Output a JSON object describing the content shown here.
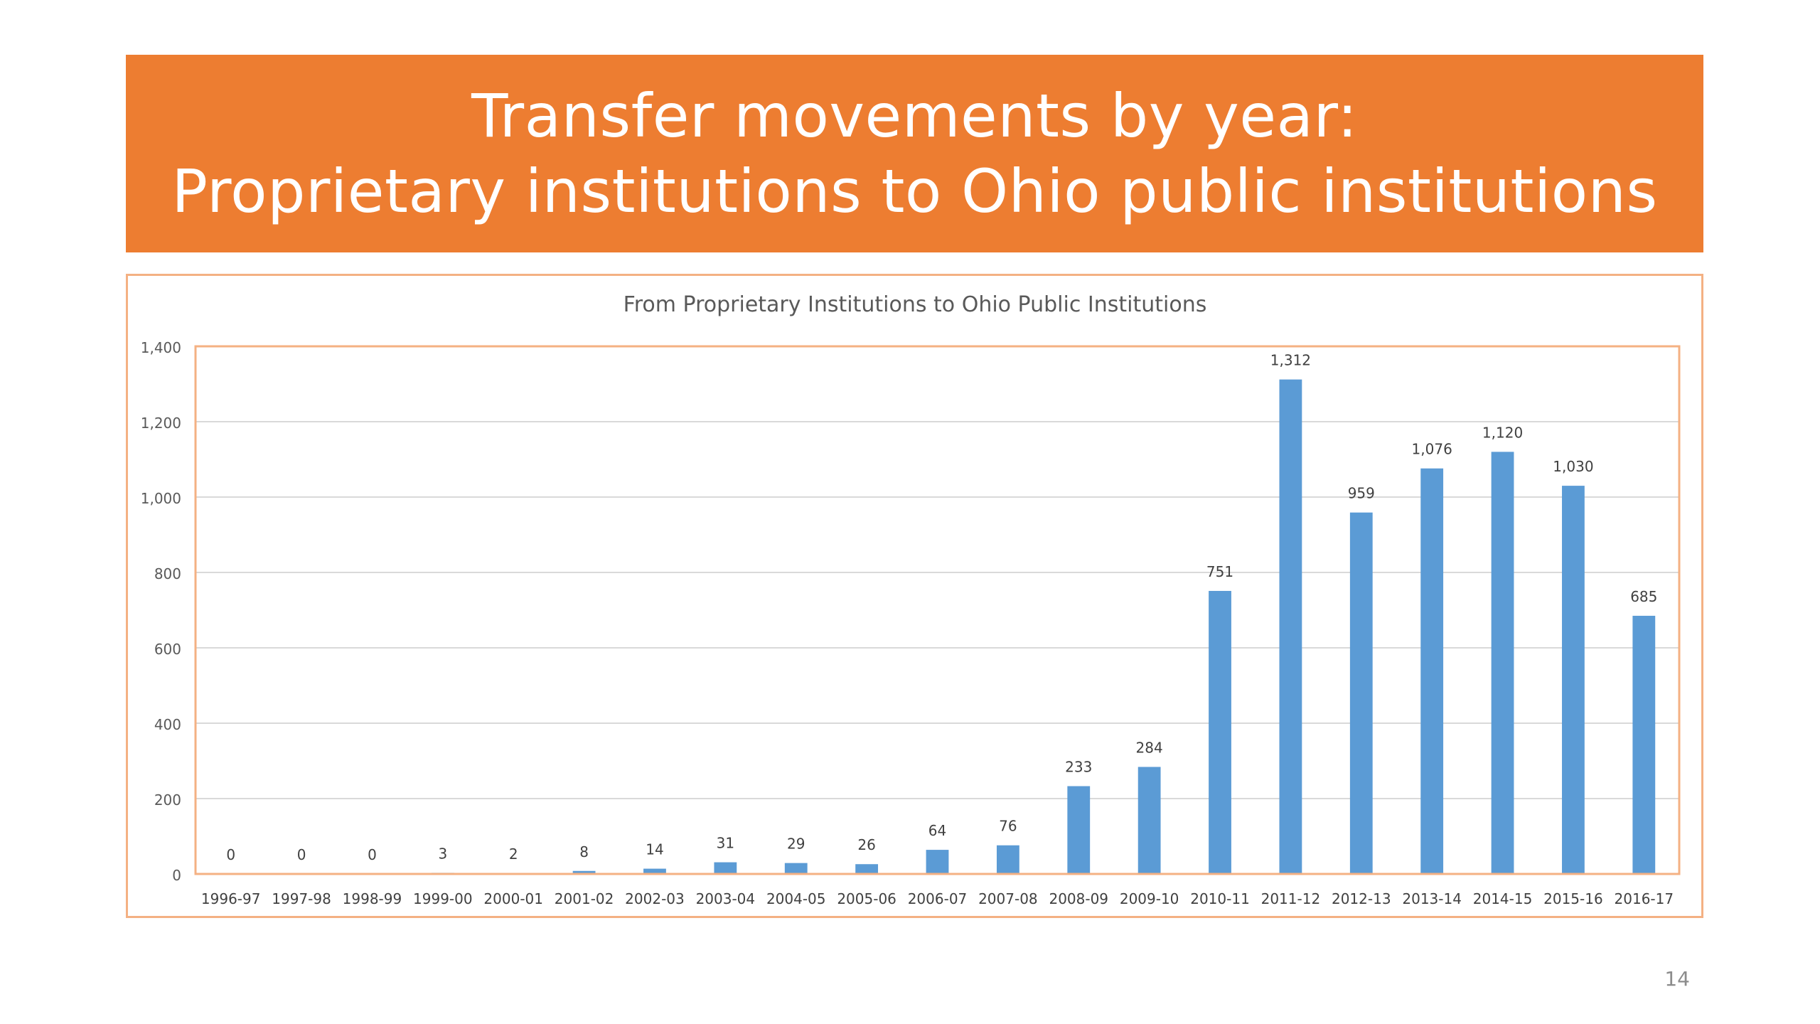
{
  "slide": {
    "title_line1": "Transfer movements by year:",
    "title_line2": "Proprietary institutions to Ohio public institutions",
    "page_number": "14",
    "banner_color": "#ED7D31",
    "frame_border_color": "#F4B183"
  },
  "chart_data": {
    "type": "bar",
    "title": "From Proprietary Institutions to Ohio Public Institutions",
    "xlabel": "",
    "ylabel": "",
    "categories": [
      "1996-97",
      "1997-98",
      "1998-99",
      "1999-00",
      "2000-01",
      "2001-02",
      "2002-03",
      "2003-04",
      "2004-05",
      "2005-06",
      "2006-07",
      "2007-08",
      "2008-09",
      "2009-10",
      "2010-11",
      "2011-12",
      "2012-13",
      "2013-14",
      "2014-15",
      "2015-16",
      "2016-17"
    ],
    "values": [
      0,
      0,
      0,
      3,
      2,
      8,
      14,
      31,
      29,
      26,
      64,
      76,
      233,
      284,
      751,
      1312,
      959,
      1076,
      1120,
      1030,
      685
    ],
    "data_labels": [
      "0",
      "0",
      "0",
      "3",
      "2",
      "8",
      "14",
      "31",
      "29",
      "26",
      "64",
      "76",
      "233",
      "284",
      "751",
      "1,312",
      "959",
      "1,076",
      "1,120",
      "1,030",
      "685"
    ],
    "ylim": [
      0,
      1400
    ],
    "y_ticks": [
      0,
      200,
      400,
      600,
      800,
      1000,
      1200,
      1400
    ],
    "y_tick_labels": [
      "0",
      "200",
      "400",
      "600",
      "800",
      "1,000",
      "1,200",
      "1,400"
    ],
    "grid": true,
    "legend": "none",
    "bar_color": "#5B9BD5",
    "plot_border_color": "#F4B183"
  }
}
